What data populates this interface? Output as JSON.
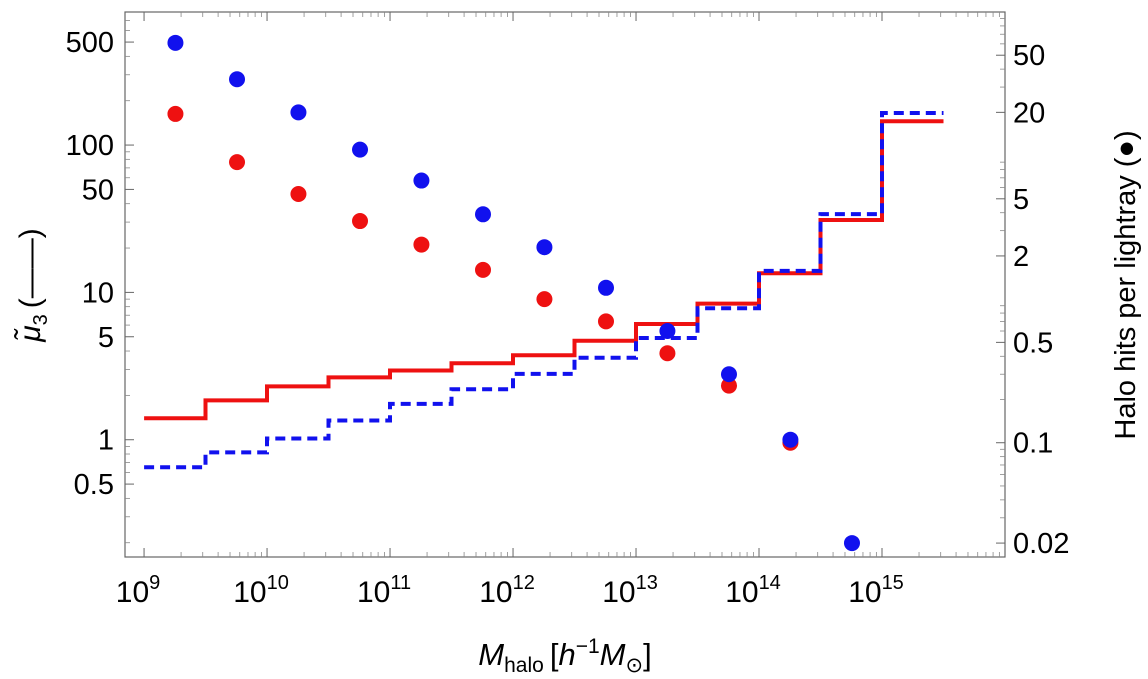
{
  "chart_data": {
    "type": "scatter",
    "title": "",
    "xscale": "log",
    "xlim": [
      700000000.0,
      1e+16
    ],
    "x_ticks": [
      {
        "value": 1000000000.0,
        "base": "10",
        "exp": "9"
      },
      {
        "value": 10000000000.0,
        "base": "10",
        "exp": "10"
      },
      {
        "value": 100000000000.0,
        "base": "10",
        "exp": "11"
      },
      {
        "value": 1000000000000.0,
        "base": "10",
        "exp": "12"
      },
      {
        "value": 10000000000000.0,
        "base": "10",
        "exp": "13"
      },
      {
        "value": 100000000000000.0,
        "base": "10",
        "exp": "14"
      },
      {
        "value": 1000000000000000.0,
        "base": "10",
        "exp": "15"
      }
    ],
    "xlabel": {
      "main": "M",
      "sub": "halo",
      "bracket_open": "[",
      "h": "h",
      "exp": "−1",
      "M": "M",
      "sun": "⊙",
      "bracket_close": "]"
    },
    "y_left": {
      "label_main": "μ̃",
      "label_sub": "3",
      "label_marker": "(——)",
      "scale": "log",
      "lim": [
        0.16,
        800
      ],
      "ticks": [
        {
          "value": 0.5,
          "label": "0.5"
        },
        {
          "value": 1,
          "label": "1"
        },
        {
          "value": 5,
          "label": "5"
        },
        {
          "value": 10,
          "label": "10"
        },
        {
          "value": 50,
          "label": "50"
        },
        {
          "value": 100,
          "label": "100"
        },
        {
          "value": 500,
          "label": "500"
        }
      ]
    },
    "y_right": {
      "label": "Halo hits per lightray (●)",
      "scale": "log",
      "lim": [
        0.016,
        100
      ],
      "ticks": [
        {
          "value": 0.02,
          "label": "0.02"
        },
        {
          "value": 0.1,
          "label": "0.1"
        },
        {
          "value": 0.5,
          "label": "0.5"
        },
        {
          "value": 2,
          "label": "2"
        },
        {
          "value": 5,
          "label": "5"
        },
        {
          "value": 20,
          "label": "20"
        },
        {
          "value": 50,
          "label": "50"
        }
      ]
    },
    "steps": [
      {
        "color": "#ee1111",
        "style": "solid",
        "axis": "left",
        "edges": [
          1000000000.0,
          3160000000.0,
          10000000000.0,
          31600000000.0,
          100000000000.0,
          316000000000.0,
          1000000000000.0,
          3160000000000.0,
          10000000000000.0,
          31600000000000.0,
          100000000000000.0,
          316000000000000.0,
          1000000000000000.0,
          3160000000000000.0
        ],
        "values": [
          1.4,
          1.85,
          2.3,
          2.65,
          2.95,
          3.3,
          3.75,
          4.7,
          6.1,
          8.4,
          13.5,
          31,
          145
        ]
      },
      {
        "color": "#1111ee",
        "style": "dashed",
        "axis": "left",
        "edges": [
          1000000000.0,
          3160000000.0,
          10000000000.0,
          31600000000.0,
          100000000000.0,
          316000000000.0,
          1000000000000.0,
          3160000000000.0,
          10000000000000.0,
          31600000000000.0,
          100000000000000.0,
          316000000000000.0,
          1000000000000000.0,
          3160000000000000.0
        ],
        "values": [
          0.65,
          0.82,
          1.02,
          1.35,
          1.75,
          2.2,
          2.8,
          3.6,
          4.9,
          7.8,
          14.0,
          34,
          165
        ]
      }
    ],
    "points": [
      {
        "color": "#ee1111",
        "axis": "right",
        "x": [
          1800000000.0,
          5700000000.0,
          18000000000.0,
          57000000000.0,
          180000000000.0,
          570000000000.0,
          1800000000000.0,
          5700000000000.0,
          18000000000000.0,
          57000000000000.0,
          180000000000000.0
        ],
        "y": [
          19.5,
          9.0,
          5.4,
          3.5,
          2.4,
          1.6,
          1.0,
          0.7,
          0.42,
          0.25,
          0.1
        ]
      },
      {
        "color": "#1111ee",
        "axis": "right",
        "x": [
          1800000000.0,
          5700000000.0,
          18000000000.0,
          57000000000.0,
          180000000000.0,
          570000000000.0,
          1800000000000.0,
          5700000000000.0,
          18000000000000.0,
          57000000000000.0,
          180000000000000.0,
          570000000000000.0
        ],
        "y": [
          61,
          34,
          20,
          11,
          6.7,
          3.9,
          2.3,
          1.2,
          0.6,
          0.3,
          0.105,
          0.02
        ]
      }
    ]
  }
}
